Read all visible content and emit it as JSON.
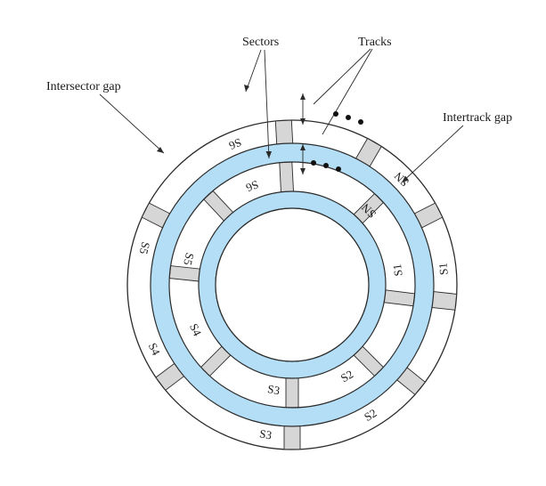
{
  "callouts": {
    "sectors": "Sectors",
    "tracks": "Tracks",
    "intersector_gap": "Intersector gap",
    "intertrack_gap": "Intertrack gap"
  },
  "outer_track_labels": [
    {
      "text": "S1",
      "angle": 84
    },
    {
      "text": "S2",
      "angle": 149
    },
    {
      "text": "S3",
      "angle": -170
    },
    {
      "text": "S4",
      "angle": -115
    },
    {
      "text": "S5",
      "angle": -76
    },
    {
      "text": "S6",
      "angle": -22
    },
    {
      "text": "SN",
      "angle": 46
    }
  ],
  "inner_track_labels": [
    {
      "text": "S1",
      "angle": 82
    },
    {
      "text": "S2",
      "angle": 149
    },
    {
      "text": "S3",
      "angle": -170
    },
    {
      "text": "S4",
      "angle": -115
    },
    {
      "text": "S5",
      "angle": -76
    },
    {
      "text": "S6",
      "angle": -22
    },
    {
      "text": "SN",
      "angle": 46
    }
  ],
  "gap_angles_outer": [
    -3,
    30,
    63,
    96,
    129,
    180,
    233,
    297
  ],
  "gap_angles_inner": [
    -3,
    45,
    97,
    135,
    180,
    225,
    276,
    317
  ],
  "colors": {
    "intertrack_band": "#b4def5",
    "sector_gap": "#d6d6d6",
    "lines": "#2b2b2b",
    "background": "#ffffff"
  }
}
